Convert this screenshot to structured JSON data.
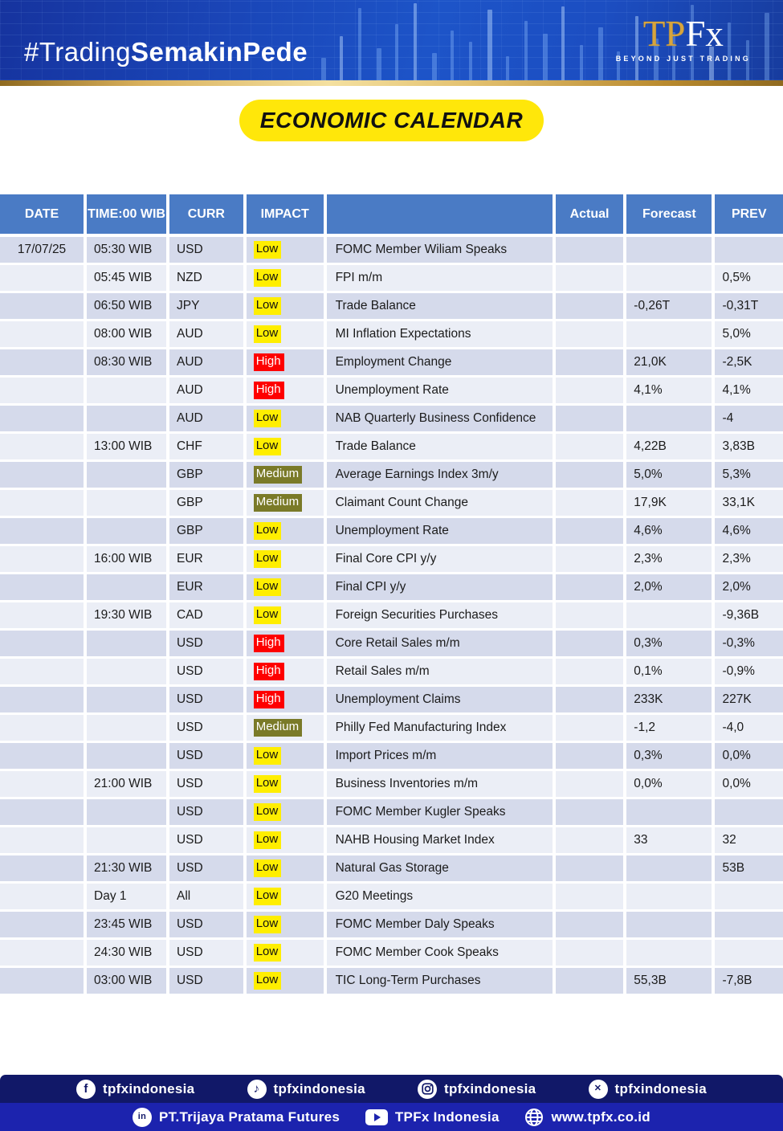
{
  "banner": {
    "hashtag_regular": "#Trading",
    "hashtag_bold": "SemakinPede",
    "logo_tp": "TP",
    "logo_fx": "Fx",
    "logo_tagline": "BEYOND JUST TRADING"
  },
  "title_badge": "ECONOMIC CALENDAR",
  "table": {
    "headers": [
      "DATE",
      "TIME:00 WIB",
      "CURR",
      "IMPACT",
      "",
      "Actual",
      "Forecast",
      "PREV"
    ],
    "impact_styles": {
      "Low": {
        "bg": "#ffee00",
        "text": "#111111"
      },
      "Medium": {
        "bg": "#7a7a28",
        "text": "#ffffff"
      },
      "High": {
        "bg": "#fe0000",
        "text": "#ffffff"
      }
    },
    "rows": [
      {
        "date": "17/07/25",
        "time": "05:30 WIB",
        "curr": "USD",
        "impact": "Low",
        "event": "FOMC Member Wiliam Speaks",
        "actual": "",
        "forecast": "",
        "prev": ""
      },
      {
        "date": "",
        "time": "05:45 WIB",
        "curr": "NZD",
        "impact": "Low",
        "event": "FPI m/m",
        "actual": "",
        "forecast": "",
        "prev": "0,5%"
      },
      {
        "date": "",
        "time": "06:50 WIB",
        "curr": "JPY",
        "impact": "Low",
        "event": "Trade Balance",
        "actual": "",
        "forecast": "-0,26T",
        "prev": "-0,31T"
      },
      {
        "date": "",
        "time": "08:00 WIB",
        "curr": "AUD",
        "impact": "Low",
        "event": "MI Inflation Expectations",
        "actual": "",
        "forecast": "",
        "prev": "5,0%"
      },
      {
        "date": "",
        "time": "08:30 WIB",
        "curr": "AUD",
        "impact": "High",
        "event": "Employment Change",
        "actual": "",
        "forecast": "21,0K",
        "prev": "-2,5K"
      },
      {
        "date": "",
        "time": "",
        "curr": "AUD",
        "impact": "High",
        "event": "Unemployment Rate",
        "actual": "",
        "forecast": "4,1%",
        "prev": "4,1%"
      },
      {
        "date": "",
        "time": "",
        "curr": "AUD",
        "impact": "Low",
        "event": "NAB Quarterly Business Confidence",
        "actual": "",
        "forecast": "",
        "prev": "-4"
      },
      {
        "date": "",
        "time": "13:00 WIB",
        "curr": "CHF",
        "impact": "Low",
        "event": "Trade Balance",
        "actual": "",
        "forecast": "4,22B",
        "prev": "3,83B"
      },
      {
        "date": "",
        "time": "",
        "curr": "GBP",
        "impact": "Medium",
        "event": "Average Earnings Index 3m/y",
        "actual": "",
        "forecast": "5,0%",
        "prev": "5,3%"
      },
      {
        "date": "",
        "time": "",
        "curr": "GBP",
        "impact": "Medium",
        "event": "Claimant Count Change",
        "actual": "",
        "forecast": "17,9K",
        "prev": "33,1K"
      },
      {
        "date": "",
        "time": "",
        "curr": "GBP",
        "impact": "Low",
        "event": "Unemployment Rate",
        "actual": "",
        "forecast": "4,6%",
        "prev": "4,6%"
      },
      {
        "date": "",
        "time": "16:00 WIB",
        "curr": "EUR",
        "impact": "Low",
        "event": "Final Core CPI y/y",
        "actual": "",
        "forecast": "2,3%",
        "prev": "2,3%"
      },
      {
        "date": "",
        "time": "",
        "curr": "EUR",
        "impact": "Low",
        "event": "Final CPI y/y",
        "actual": "",
        "forecast": "2,0%",
        "prev": "2,0%"
      },
      {
        "date": "",
        "time": "19:30 WIB",
        "curr": "CAD",
        "impact": "Low",
        "event": "Foreign Securities Purchases",
        "actual": "",
        "forecast": "",
        "prev": "-9,36B"
      },
      {
        "date": "",
        "time": "",
        "curr": "USD",
        "impact": "High",
        "event": "Core Retail Sales m/m",
        "actual": "",
        "forecast": "0,3%",
        "prev": "-0,3%"
      },
      {
        "date": "",
        "time": "",
        "curr": "USD",
        "impact": "High",
        "event": "Retail Sales m/m",
        "actual": "",
        "forecast": "0,1%",
        "prev": "-0,9%"
      },
      {
        "date": "",
        "time": "",
        "curr": "USD",
        "impact": "High",
        "event": "Unemployment Claims",
        "actual": "",
        "forecast": "233K",
        "prev": "227K"
      },
      {
        "date": "",
        "time": "",
        "curr": "USD",
        "impact": "Medium",
        "event": "Philly Fed Manufacturing Index",
        "actual": "",
        "forecast": "-1,2",
        "prev": "-4,0"
      },
      {
        "date": "",
        "time": "",
        "curr": "USD",
        "impact": "Low",
        "event": "Import Prices m/m",
        "actual": "",
        "forecast": "0,3%",
        "prev": "0,0%"
      },
      {
        "date": "",
        "time": "21:00 WIB",
        "curr": "USD",
        "impact": "Low",
        "event": "Business Inventories m/m",
        "actual": "",
        "forecast": "0,0%",
        "prev": "0,0%"
      },
      {
        "date": "",
        "time": "",
        "curr": "USD",
        "impact": "Low",
        "event": "FOMC Member Kugler Speaks",
        "actual": "",
        "forecast": "",
        "prev": ""
      },
      {
        "date": "",
        "time": "",
        "curr": "USD",
        "impact": "Low",
        "event": "NAHB Housing Market Index",
        "actual": "",
        "forecast": "33",
        "prev": "32"
      },
      {
        "date": "",
        "time": "21:30 WIB",
        "curr": "USD",
        "impact": "Low",
        "event": "Natural Gas Storage",
        "actual": "",
        "forecast": "",
        "prev": "53B"
      },
      {
        "date": "",
        "time": "Day 1",
        "curr": "All",
        "impact": "Low",
        "event": "G20 Meetings",
        "actual": "",
        "forecast": "",
        "prev": ""
      },
      {
        "date": "",
        "time": "23:45 WIB",
        "curr": "USD",
        "impact": "Low",
        "event": "FOMC Member Daly Speaks",
        "actual": "",
        "forecast": "",
        "prev": ""
      },
      {
        "date": "",
        "time": "24:30 WIB",
        "curr": "USD",
        "impact": "Low",
        "event": "FOMC Member Cook Speaks",
        "actual": "",
        "forecast": "",
        "prev": ""
      },
      {
        "date": "",
        "time": "03:00 WIB",
        "curr": "USD",
        "impact": "Low",
        "event": "TIC Long-Term Purchases",
        "actual": "",
        "forecast": "55,3B",
        "prev": "-7,8B"
      }
    ]
  },
  "footer": {
    "social_row": [
      {
        "icon": "facebook-icon",
        "label": "tpfxindonesia"
      },
      {
        "icon": "tiktok-icon",
        "label": "tpfxindonesia"
      },
      {
        "icon": "instagram-icon",
        "label": "tpfxindonesia"
      },
      {
        "icon": "x-icon",
        "label": "tpfxindonesia"
      }
    ],
    "company_row": [
      {
        "icon": "linkedin-icon",
        "label": "PT.Trijaya Pratama Futures"
      },
      {
        "icon": "youtube-icon",
        "label": "TPFx Indonesia"
      },
      {
        "icon": "globe-icon",
        "label": "www.tpfx.co.id"
      }
    ]
  },
  "colors": {
    "header_blue": "#4a7bc5",
    "row_dark": "#d5daeb",
    "row_light": "#ebeef6",
    "badge_yellow": "#ffe70a",
    "social_bar_navy": "#111868",
    "company_bar_blue": "#1c23ae",
    "banner_blue": "#1d54c8",
    "gold": "#d8b05c"
  }
}
